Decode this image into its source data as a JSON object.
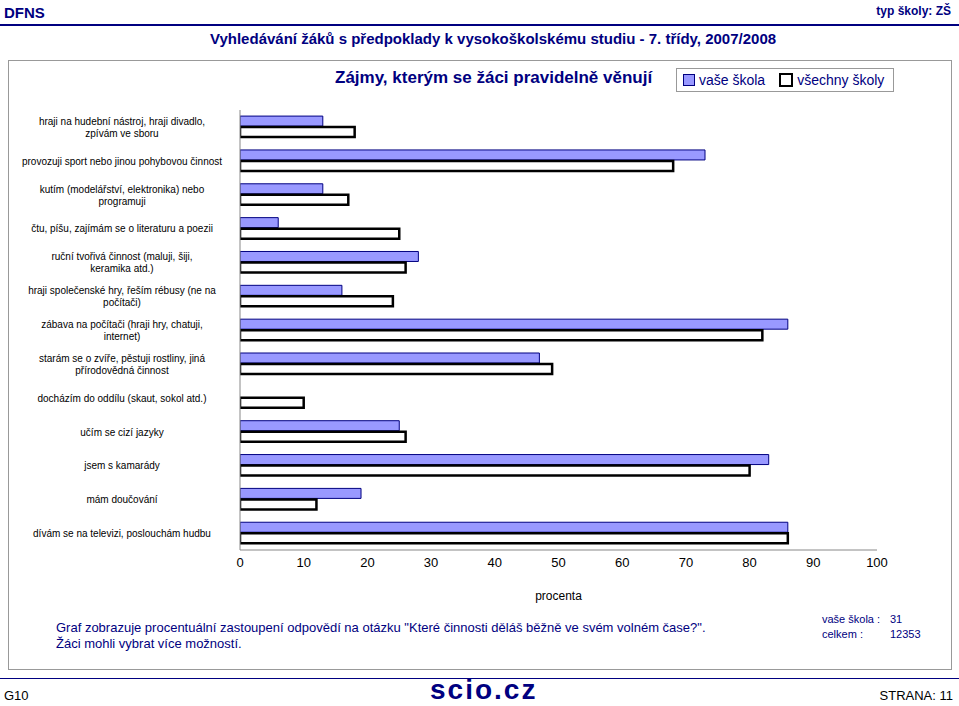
{
  "header": {
    "left": "DFNS",
    "subtitle": "Vyhledávání žáků s předpoklady k vysokoškolskému studiu - 7. třídy, 2007/2008",
    "right": "typ školy: ZŠ"
  },
  "chart_data": {
    "type": "bar",
    "orientation": "horizontal",
    "title": "Zájmy, kterým se žáci pravidelně věnují",
    "x_label": "procenta",
    "categories": [
      "hraji na hudební nástroj, hraji divadlo, zpívám ve sboru",
      "provozuji sport nebo jinou pohybovou činnost",
      "kutím (modelářství, elektronika) nebo programuji",
      "čtu, píšu, zajímám se o literaturu a poezii",
      "ruční tvořivá činnost (maluji, šiji, keramika atd.)",
      "hraji společenské hry, řeším rébusy (ne na počítači)",
      "zábava na počítači (hraji hry, chatuji, internet)",
      "starám se o zvíře, pěstuji rostliny, jiná přírodovědná činnost",
      "docházím do oddílu (skaut, sokol atd.)",
      "učím se cizí jazyky",
      "jsem s kamarády",
      "mám doučování",
      "dívám se na televizi, poslouchám hudbu"
    ],
    "series": [
      {
        "name": "vaše škola",
        "color": "#9999ff",
        "values": [
          13,
          73,
          13,
          6,
          28,
          16,
          86,
          47,
          0,
          25,
          83,
          19,
          86
        ]
      },
      {
        "name": "všechny školy",
        "color": "#ffffff",
        "values": [
          18,
          68,
          17,
          25,
          26,
          24,
          82,
          49,
          10,
          26,
          80,
          12,
          86
        ]
      }
    ],
    "xlim": [
      0,
      100
    ],
    "xticks": [
      0,
      10,
      20,
      30,
      40,
      50,
      60,
      70,
      80,
      90,
      100
    ],
    "grid": false,
    "legend": "top right"
  },
  "notes": [
    "Graf zobrazuje procentuální zastoupení odpovědí na otázku \"Které činnosti děláš běžně ve svém volném čase?\".",
    "Žáci mohli vybrat více možností."
  ],
  "counts": [
    {
      "label": "vaše škola :",
      "value": 31
    },
    {
      "label": "celkem :",
      "value": 12353
    }
  ],
  "footer": {
    "left": "G10",
    "logo": "scio.cz",
    "right": "STRANA: 11"
  }
}
